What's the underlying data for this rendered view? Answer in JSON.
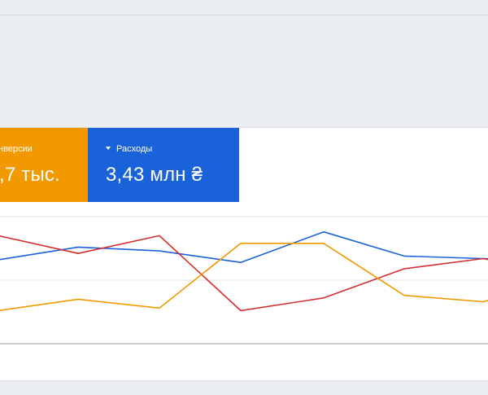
{
  "metrics": {
    "conversions": {
      "label": "нверсии",
      "value": ",7 тыс.",
      "color": "#f29900"
    },
    "cost": {
      "label": "Расходы",
      "value": "3,43 млн ₴",
      "color": "#1a62d9",
      "icon": "caret-down-icon"
    }
  },
  "chart_data": {
    "type": "line",
    "x": [
      1,
      2,
      3,
      4,
      5,
      6,
      7,
      8
    ],
    "ylim": [
      0,
      100
    ],
    "grid": true,
    "series": [
      {
        "color": "#1a62d9",
        "values": [
          66,
          76,
          73,
          64,
          88,
          69,
          67,
          66
        ]
      },
      {
        "color": "#d32f2f",
        "values": [
          85,
          71,
          85,
          26,
          36,
          59,
          67,
          61
        ]
      },
      {
        "color": "#f29900",
        "values": [
          26,
          35,
          28,
          79,
          79,
          38,
          33,
          41
        ]
      }
    ]
  }
}
